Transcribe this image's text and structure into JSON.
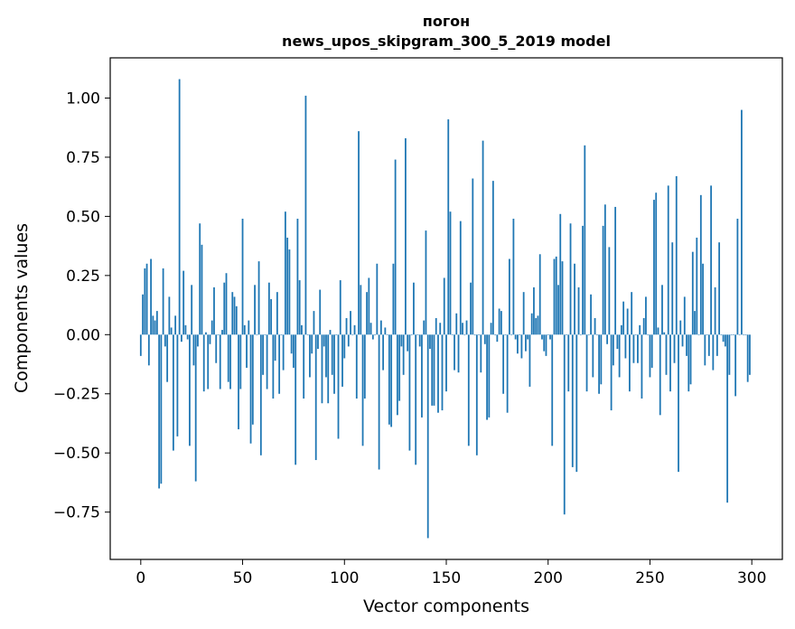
{
  "chart_data": {
    "type": "bar",
    "title": [
      "погон",
      "news_upos_skipgram_300_5_2019 model"
    ],
    "xlabel": "Vector components",
    "ylabel": "Components values",
    "xlim": [
      -15,
      315
    ],
    "ylim": [
      -0.95,
      1.17
    ],
    "xticks": [
      0,
      50,
      100,
      150,
      200,
      250,
      300
    ],
    "yticks": [
      -0.75,
      -0.5,
      -0.25,
      0.0,
      0.25,
      0.5,
      0.75,
      1.0
    ],
    "xtick_labels": [
      "0",
      "50",
      "100",
      "150",
      "200",
      "250",
      "300"
    ],
    "ytick_labels": [
      "−0.75",
      "−0.50",
      "−0.25",
      "0.00",
      "0.25",
      "0.50",
      "0.75",
      "1.00"
    ],
    "bar_color": "#1f77b4",
    "grid": false,
    "legend": "none",
    "values": [
      -0.09,
      0.17,
      0.28,
      0.3,
      -0.13,
      0.32,
      0.08,
      0.06,
      0.1,
      -0.65,
      -0.63,
      0.28,
      -0.05,
      -0.2,
      0.16,
      0.03,
      -0.49,
      0.08,
      -0.43,
      1.08,
      -0.03,
      0.27,
      0.04,
      -0.02,
      -0.47,
      0.21,
      -0.13,
      -0.62,
      -0.05,
      0.47,
      0.38,
      -0.24,
      0.01,
      -0.23,
      -0.04,
      0.06,
      0.2,
      -0.12,
      0.0,
      -0.23,
      0.02,
      0.22,
      0.26,
      -0.2,
      -0.23,
      0.18,
      0.16,
      0.12,
      -0.4,
      -0.23,
      0.49,
      0.04,
      -0.14,
      0.06,
      -0.46,
      -0.38,
      0.21,
      0.0,
      0.31,
      -0.51,
      -0.17,
      0.0,
      -0.23,
      0.22,
      0.15,
      -0.27,
      -0.11,
      0.18,
      -0.25,
      0.0,
      -0.15,
      0.52,
      0.41,
      0.36,
      -0.08,
      -0.14,
      -0.55,
      0.49,
      0.23,
      0.04,
      -0.27,
      1.01,
      0.0,
      -0.18,
      -0.08,
      0.1,
      -0.53,
      -0.06,
      0.19,
      -0.29,
      -0.05,
      -0.18,
      -0.29,
      0.02,
      -0.17,
      -0.25,
      0.0,
      -0.44,
      0.23,
      -0.22,
      -0.1,
      0.07,
      -0.05,
      0.1,
      0.0,
      0.04,
      -0.27,
      0.86,
      0.21,
      -0.47,
      -0.27,
      0.18,
      0.24,
      0.05,
      -0.02,
      0.0,
      0.3,
      -0.57,
      0.06,
      -0.15,
      0.03,
      0.0,
      -0.38,
      -0.39,
      0.3,
      0.74,
      -0.34,
      -0.28,
      -0.05,
      -0.17,
      0.83,
      -0.07,
      -0.49,
      0.0,
      0.22,
      -0.55,
      0.0,
      -0.05,
      -0.35,
      0.06,
      0.44,
      -0.86,
      -0.06,
      -0.3,
      -0.3,
      0.07,
      -0.33,
      0.05,
      -0.32,
      0.24,
      -0.24,
      0.91,
      0.52,
      0.0,
      -0.15,
      0.09,
      -0.16,
      0.48,
      0.05,
      0.0,
      0.06,
      -0.47,
      0.22,
      0.66,
      0.0,
      -0.51,
      0.0,
      -0.16,
      0.82,
      -0.04,
      -0.36,
      -0.35,
      0.05,
      0.65,
      0.0,
      -0.03,
      0.11,
      0.1,
      -0.25,
      0.0,
      -0.33,
      0.32,
      0.0,
      0.49,
      -0.02,
      -0.08,
      0.0,
      -0.1,
      0.18,
      -0.07,
      -0.02,
      -0.22,
      0.09,
      0.2,
      0.07,
      0.08,
      0.34,
      -0.02,
      -0.07,
      -0.09,
      0.0,
      -0.02,
      -0.47,
      0.32,
      0.33,
      0.21,
      0.51,
      0.31,
      -0.76,
      0.0,
      -0.24,
      0.47,
      -0.56,
      0.3,
      -0.58,
      0.2,
      0.0,
      0.46,
      0.8,
      -0.24,
      0.0,
      0.17,
      -0.18,
      0.07,
      0.0,
      -0.25,
      -0.21,
      0.46,
      0.55,
      -0.04,
      0.37,
      -0.32,
      -0.13,
      0.54,
      -0.06,
      -0.18,
      0.04,
      0.14,
      -0.1,
      0.11,
      -0.24,
      0.18,
      -0.12,
      0.0,
      -0.12,
      0.04,
      -0.27,
      0.07,
      0.16,
      0.0,
      -0.18,
      -0.14,
      0.57,
      0.6,
      0.03,
      -0.34,
      0.21,
      0.01,
      -0.17,
      0.63,
      -0.24,
      0.39,
      -0.12,
      0.67,
      -0.58,
      0.06,
      -0.05,
      0.16,
      -0.09,
      -0.24,
      -0.21,
      0.35,
      0.1,
      0.41,
      0.0,
      0.59,
      0.3,
      -0.13,
      0.0,
      -0.09,
      0.63,
      -0.15,
      0.2,
      -0.09,
      0.39,
      0.0,
      -0.03,
      -0.05,
      -0.71,
      -0.17,
      0.0,
      0.0,
      -0.26,
      0.49,
      0.0,
      0.95,
      0.0,
      0.0,
      -0.2,
      -0.17
    ]
  }
}
